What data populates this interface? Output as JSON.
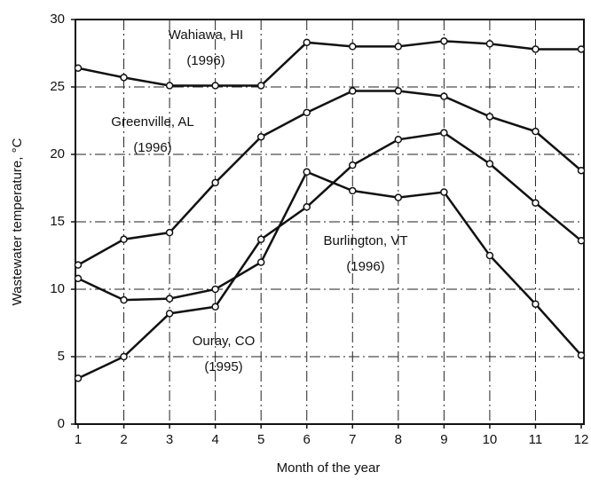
{
  "chart_data": {
    "type": "line",
    "xlabel": "Month of the year",
    "ylabel": "Wastewater temperature, °C",
    "x": [
      1,
      2,
      3,
      4,
      5,
      6,
      7,
      8,
      9,
      10,
      11,
      12
    ],
    "xlim": [
      1,
      12
    ],
    "xticks": [
      1,
      2,
      3,
      4,
      5,
      6,
      7,
      8,
      9,
      10,
      11,
      12
    ],
    "ylim": [
      0,
      30
    ],
    "yticks": [
      0,
      5,
      10,
      15,
      20,
      25,
      30
    ],
    "grid": true,
    "series": [
      {
        "name": "Wahiawa, HI",
        "note": "(1996)",
        "color": "#111111",
        "values": [
          26.4,
          25.7,
          25.1,
          25.1,
          25.1,
          28.3,
          28.0,
          28.0,
          28.4,
          28.2,
          27.8,
          27.8
        ]
      },
      {
        "name": "Greenville, AL",
        "note": "(1996)",
        "color": "#111111",
        "values": [
          11.8,
          13.7,
          14.2,
          17.9,
          21.3,
          23.1,
          24.7,
          24.7,
          24.3,
          22.8,
          21.7,
          18.8
        ]
      },
      {
        "name": "Burlington, VT",
        "note": "(1996)",
        "color": "#111111",
        "values": [
          10.8,
          9.2,
          9.3,
          10.0,
          12.0,
          18.7,
          17.3,
          16.8,
          17.2,
          12.5,
          8.9,
          5.1
        ]
      },
      {
        "name": "Ouray, CO",
        "note": "(1995)",
        "color": "#111111",
        "values": [
          3.4,
          5.0,
          8.2,
          8.7,
          13.7,
          16.1,
          19.2,
          21.1,
          21.6,
          19.3,
          16.4,
          13.6
        ]
      }
    ]
  }
}
